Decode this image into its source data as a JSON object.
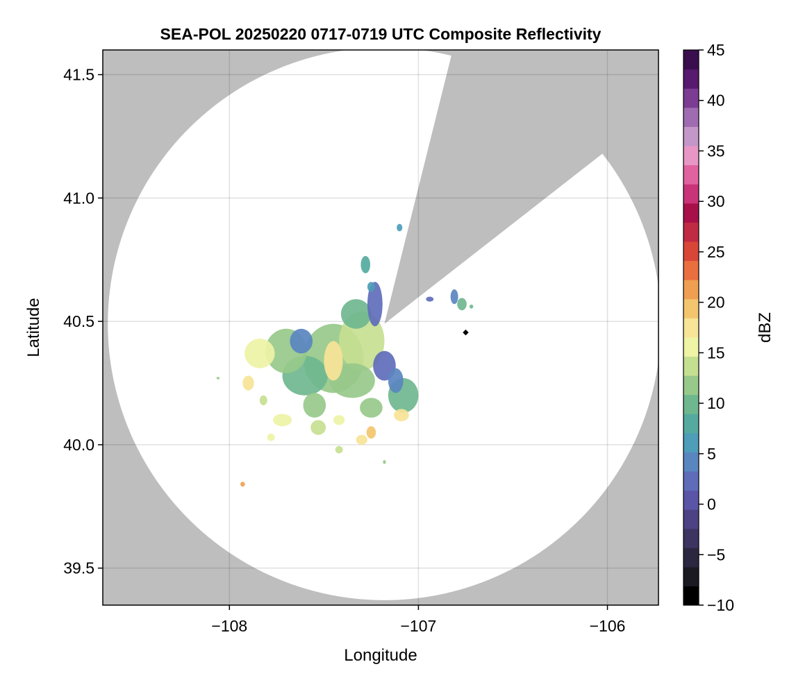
{
  "chart_data": {
    "type": "heatmap",
    "title": "SEA-POL 20250220 0717-0719 UTC Composite Reflectivity",
    "xlabel": "Longitude",
    "ylabel": "Latitude",
    "xlim": [
      -108.67,
      -105.73
    ],
    "ylim": [
      39.35,
      41.6
    ],
    "xticks": [
      -108,
      -107,
      -106
    ],
    "xtick_labels": [
      "−108",
      "−107",
      "−106"
    ],
    "yticks": [
      39.5,
      40.0,
      40.5,
      41.0,
      41.5
    ],
    "ytick_labels": [
      "39.5",
      "40.0",
      "40.5",
      "41.0",
      "41.5"
    ],
    "grid": true,
    "background_color": "#bebebe",
    "coverage_color": "#ffffff",
    "radar_site": {
      "lon": -107.18,
      "lat": 40.49
    },
    "coverage_range_deg_lat": 1.12,
    "blocked_sector": {
      "from_azimuth_deg": 14,
      "to_azimuth_deg": 52
    },
    "marker": {
      "lon": -106.75,
      "lat": 40.455,
      "color": "#000000"
    },
    "colorbar": {
      "label": "dBZ",
      "range": [
        -10,
        45
      ],
      "ticks": [
        -10,
        -5,
        0,
        5,
        10,
        15,
        20,
        25,
        30,
        35,
        40,
        45
      ],
      "tick_labels": [
        "−10",
        "−5",
        "0",
        "5",
        "10",
        "15",
        "20",
        "25",
        "30",
        "35",
        "40",
        "45"
      ],
      "colors": [
        "#000000",
        "#1b1a23",
        "#2c2740",
        "#3d3461",
        "#4d4284",
        "#5a55a6",
        "#5f6cba",
        "#5a86c0",
        "#4e9db9",
        "#55aaa0",
        "#6fb78f",
        "#97c98a",
        "#c5df90",
        "#eef3a6",
        "#f7e497",
        "#f3c56e",
        "#ef9f52",
        "#e96f3f",
        "#d94638",
        "#c02a43",
        "#a81049",
        "#c93478",
        "#e0629f",
        "#e896c5",
        "#c497c9",
        "#9f6cb2",
        "#7c3c93",
        "#571a6e",
        "#3a0d4f"
      ]
    },
    "echoes": [
      {
        "lon": -107.45,
        "lat": 40.35,
        "rlon": 0.16,
        "rlat": 0.14,
        "dbz": 11
      },
      {
        "lon": -107.3,
        "lat": 40.42,
        "rlon": 0.12,
        "rlat": 0.12,
        "dbz": 14
      },
      {
        "lon": -107.6,
        "lat": 40.28,
        "rlon": 0.12,
        "rlat": 0.08,
        "dbz": 10
      },
      {
        "lon": -107.35,
        "lat": 40.26,
        "rlon": 0.12,
        "rlat": 0.07,
        "dbz": 12
      },
      {
        "lon": -107.7,
        "lat": 40.38,
        "rlon": 0.11,
        "rlat": 0.09,
        "dbz": 12
      },
      {
        "lon": -107.84,
        "lat": 40.37,
        "rlon": 0.08,
        "rlat": 0.06,
        "dbz": 15
      },
      {
        "lon": -107.62,
        "lat": 40.42,
        "rlon": 0.06,
        "rlat": 0.05,
        "dbz": 5
      },
      {
        "lon": -107.45,
        "lat": 40.34,
        "rlon": 0.05,
        "rlat": 0.08,
        "dbz": 18
      },
      {
        "lon": -107.33,
        "lat": 40.53,
        "rlon": 0.08,
        "rlat": 0.06,
        "dbz": 9
      },
      {
        "lon": -107.23,
        "lat": 40.57,
        "rlon": 0.04,
        "rlat": 0.09,
        "dbz": 3
      },
      {
        "lon": -107.18,
        "lat": 40.32,
        "rlon": 0.06,
        "rlat": 0.06,
        "dbz": 2
      },
      {
        "lon": -107.08,
        "lat": 40.2,
        "rlon": 0.08,
        "rlat": 0.07,
        "dbz": 9
      },
      {
        "lon": -107.12,
        "lat": 40.26,
        "rlon": 0.04,
        "rlat": 0.05,
        "dbz": 4
      },
      {
        "lon": -107.55,
        "lat": 40.16,
        "rlon": 0.06,
        "rlat": 0.05,
        "dbz": 12
      },
      {
        "lon": -107.25,
        "lat": 40.15,
        "rlon": 0.06,
        "rlat": 0.04,
        "dbz": 11
      },
      {
        "lon": -107.9,
        "lat": 40.25,
        "rlon": 0.03,
        "rlat": 0.03,
        "dbz": 17
      },
      {
        "lon": -107.72,
        "lat": 40.1,
        "rlon": 0.05,
        "rlat": 0.025,
        "dbz": 16
      },
      {
        "lon": -107.53,
        "lat": 40.07,
        "rlon": 0.04,
        "rlat": 0.03,
        "dbz": 14
      },
      {
        "lon": -107.25,
        "lat": 40.05,
        "rlon": 0.025,
        "rlat": 0.025,
        "dbz": 20
      },
      {
        "lon": -107.3,
        "lat": 40.02,
        "rlon": 0.03,
        "rlat": 0.02,
        "dbz": 17
      },
      {
        "lon": -107.42,
        "lat": 40.1,
        "rlon": 0.03,
        "rlat": 0.02,
        "dbz": 15
      },
      {
        "lon": -107.09,
        "lat": 40.12,
        "rlon": 0.04,
        "rlat": 0.025,
        "dbz": 18
      },
      {
        "lon": -107.42,
        "lat": 39.98,
        "rlon": 0.02,
        "rlat": 0.015,
        "dbz": 14
      },
      {
        "lon": -107.78,
        "lat": 40.03,
        "rlon": 0.02,
        "rlat": 0.015,
        "dbz": 15
      },
      {
        "lon": -107.82,
        "lat": 40.18,
        "rlon": 0.02,
        "rlat": 0.02,
        "dbz": 13
      },
      {
        "lon": -107.28,
        "lat": 40.73,
        "rlon": 0.025,
        "rlat": 0.035,
        "dbz": 8
      },
      {
        "lon": -107.25,
        "lat": 40.64,
        "rlon": 0.02,
        "rlat": 0.02,
        "dbz": 6
      },
      {
        "lon": -107.1,
        "lat": 40.88,
        "rlon": 0.015,
        "rlat": 0.015,
        "dbz": 7
      },
      {
        "lon": -106.81,
        "lat": 40.6,
        "rlon": 0.02,
        "rlat": 0.03,
        "dbz": 5
      },
      {
        "lon": -106.77,
        "lat": 40.57,
        "rlon": 0.025,
        "rlat": 0.025,
        "dbz": 9
      },
      {
        "lon": -106.94,
        "lat": 40.59,
        "rlon": 0.02,
        "rlat": 0.01,
        "dbz": 3
      },
      {
        "lon": -106.72,
        "lat": 40.56,
        "rlon": 0.01,
        "rlat": 0.008,
        "dbz": 9
      },
      {
        "lon": -107.93,
        "lat": 39.84,
        "rlon": 0.012,
        "rlat": 0.01,
        "dbz": 22
      },
      {
        "lon": -107.18,
        "lat": 39.93,
        "rlon": 0.008,
        "rlat": 0.008,
        "dbz": 12
      },
      {
        "lon": -108.06,
        "lat": 40.27,
        "rlon": 0.008,
        "rlat": 0.005,
        "dbz": 12
      }
    ]
  }
}
